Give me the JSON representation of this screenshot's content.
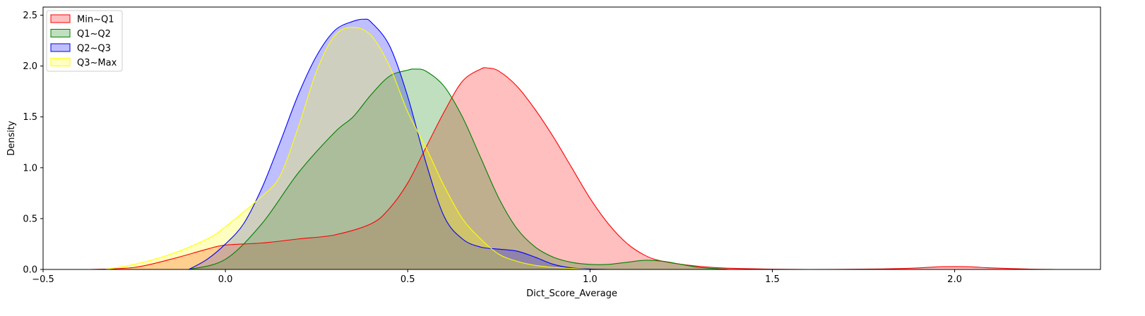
{
  "chart_data": {
    "type": "area",
    "title": "",
    "xlabel": "Dict_Score_Average",
    "ylabel": "Density",
    "xlim": [
      -0.5,
      2.4
    ],
    "ylim": [
      0,
      2.58
    ],
    "xticks": [
      -0.5,
      0.0,
      0.5,
      1.0,
      1.5,
      2.0
    ],
    "xtick_labels": [
      "−0.5",
      "0.0",
      "0.5",
      "1.0",
      "1.5",
      "2.0"
    ],
    "yticks": [
      0.0,
      0.5,
      1.0,
      1.5,
      2.0,
      2.5
    ],
    "ytick_labels": [
      "0.0",
      "0.5",
      "1.0",
      "1.5",
      "2.0",
      "2.5"
    ],
    "grid": false,
    "legend_position": "upper-left",
    "series": [
      {
        "name": "Min~Q1",
        "color": "#ff0000",
        "x": [
          -0.37,
          -0.25,
          -0.15,
          -0.05,
          0.0,
          0.1,
          0.2,
          0.3,
          0.4,
          0.45,
          0.5,
          0.55,
          0.6,
          0.65,
          0.7,
          0.72,
          0.75,
          0.8,
          0.85,
          0.9,
          0.95,
          1.0,
          1.05,
          1.1,
          1.15,
          1.2,
          1.3,
          1.4,
          1.6,
          1.8,
          1.9,
          1.95,
          2.0,
          2.05,
          2.1,
          2.2,
          2.28
        ],
        "y": [
          0.0,
          0.02,
          0.1,
          0.2,
          0.24,
          0.26,
          0.3,
          0.34,
          0.45,
          0.6,
          0.85,
          1.2,
          1.55,
          1.85,
          1.97,
          1.98,
          1.95,
          1.8,
          1.57,
          1.3,
          1.0,
          0.7,
          0.45,
          0.26,
          0.14,
          0.08,
          0.03,
          0.01,
          0.0,
          0.005,
          0.015,
          0.025,
          0.028,
          0.025,
          0.015,
          0.004,
          0.0
        ]
      },
      {
        "name": "Q1~Q2",
        "color": "#008000",
        "x": [
          -0.1,
          0.0,
          0.1,
          0.2,
          0.3,
          0.35,
          0.4,
          0.45,
          0.5,
          0.52,
          0.55,
          0.6,
          0.65,
          0.7,
          0.75,
          0.8,
          0.85,
          0.9,
          0.95,
          1.0,
          1.05,
          1.1,
          1.15,
          1.2,
          1.25,
          1.3,
          1.38
        ],
        "y": [
          0.0,
          0.1,
          0.45,
          0.95,
          1.35,
          1.5,
          1.72,
          1.9,
          1.96,
          1.97,
          1.95,
          1.8,
          1.5,
          1.1,
          0.7,
          0.4,
          0.22,
          0.12,
          0.07,
          0.05,
          0.05,
          0.07,
          0.09,
          0.08,
          0.05,
          0.02,
          0.0
        ]
      },
      {
        "name": "Q2~Q3",
        "color": "#0000ff",
        "x": [
          -0.1,
          -0.05,
          0.0,
          0.05,
          0.1,
          0.15,
          0.2,
          0.25,
          0.3,
          0.35,
          0.38,
          0.4,
          0.45,
          0.5,
          0.55,
          0.6,
          0.65,
          0.7,
          0.75,
          0.8,
          0.85,
          0.9,
          0.95,
          1.0,
          1.05
        ],
        "y": [
          0.0,
          0.1,
          0.25,
          0.45,
          0.8,
          1.25,
          1.72,
          2.1,
          2.35,
          2.44,
          2.46,
          2.43,
          2.2,
          1.7,
          1.05,
          0.52,
          0.3,
          0.22,
          0.2,
          0.18,
          0.12,
          0.05,
          0.015,
          0.004,
          0.0
        ]
      },
      {
        "name": "Q3~Max",
        "color": "#ffff00",
        "x": [
          -0.33,
          -0.25,
          -0.15,
          -0.05,
          0.0,
          0.1,
          0.15,
          0.2,
          0.25,
          0.3,
          0.35,
          0.4,
          0.45,
          0.5,
          0.55,
          0.6,
          0.65,
          0.7,
          0.75,
          0.8,
          0.85,
          0.9,
          0.95,
          1.0
        ],
        "y": [
          0.0,
          0.05,
          0.15,
          0.3,
          0.42,
          0.72,
          0.92,
          1.4,
          1.95,
          2.3,
          2.38,
          2.3,
          2.0,
          1.55,
          1.2,
          0.82,
          0.5,
          0.3,
          0.15,
          0.08,
          0.04,
          0.02,
          0.01,
          0.0
        ]
      }
    ]
  }
}
